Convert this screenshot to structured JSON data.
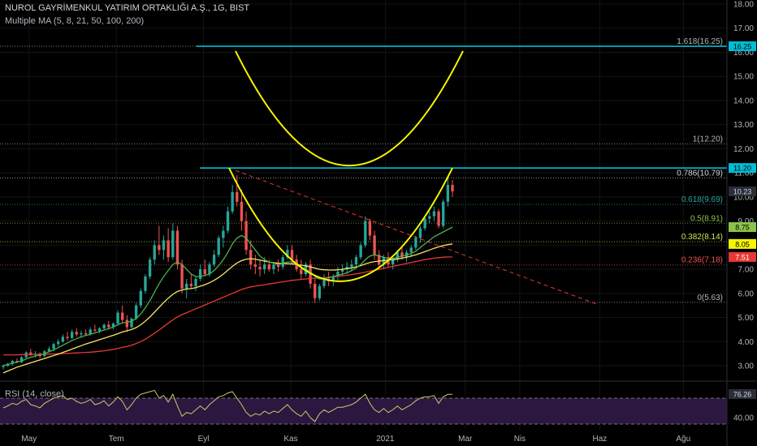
{
  "chart_data": {
    "type": "candlestick",
    "title": "NUROL GAYRİMENKUL YATIRIM ORTAKLIĞI A.Ş., 1G, BIST",
    "indicator_label": "Multiple MA (5, 8, 21, 50, 100, 200)",
    "rsi_label": "RSI (14, close)",
    "price_axis": {
      "ticks": [
        "18.00",
        "17.00",
        "16.00",
        "15.00",
        "14.00",
        "13.00",
        "12.00",
        "11.00",
        "10.00",
        "9.00",
        "8.00",
        "7.00",
        "6.00",
        "5.00",
        "4.00",
        "3.00"
      ],
      "ylim": [
        2.5,
        18.2
      ]
    },
    "rsi_axis": {
      "ticks": [
        "40.00"
      ]
    },
    "x_ticks": [
      {
        "label": "May",
        "t": 0.04
      },
      {
        "label": "Tem",
        "t": 0.16
      },
      {
        "label": "Eyl",
        "t": 0.28
      },
      {
        "label": "Kas",
        "t": 0.4
      },
      {
        "label": "2021",
        "t": 0.53
      },
      {
        "label": "Mar",
        "t": 0.64
      },
      {
        "label": "Nis",
        "t": 0.715
      },
      {
        "label": "Haz",
        "t": 0.825
      },
      {
        "label": "Ağu",
        "t": 0.94
      }
    ],
    "fib_levels": [
      {
        "label": "1.618(16.25)",
        "value": 16.25,
        "color": "#b2b5be"
      },
      {
        "label": "1(12.20)",
        "value": 12.2,
        "color": "#b2b5be"
      },
      {
        "label": "0.786(10.79)",
        "value": 10.79,
        "color": "#d1d4dc"
      },
      {
        "label": "0.618(9.69)",
        "value": 9.69,
        "color": "#26a69a"
      },
      {
        "label": "0.5(8.91)",
        "value": 8.91,
        "color": "#8bc34a"
      },
      {
        "label": "0.382(8.14)",
        "value": 8.14,
        "color": "#d4e157"
      },
      {
        "label": "0.236(7.18)",
        "value": 7.18,
        "color": "#ef5350"
      },
      {
        "label": "0(5.63)",
        "value": 5.63,
        "color": "#b2b5be"
      }
    ],
    "price_badges": [
      {
        "label": "16.25",
        "value": 16.25,
        "bg": "#00bcd4",
        "fg": "#000000"
      },
      {
        "label": "11.20",
        "value": 11.2,
        "bg": "#00bcd4",
        "fg": "#000000"
      },
      {
        "label": "10.23",
        "value": 10.23,
        "bg": "#2a2e39",
        "fg": "#d1d4dc"
      },
      {
        "label": "8.75",
        "value": 8.75,
        "bg": "#8bc34a",
        "fg": "#000000"
      },
      {
        "label": "8.05",
        "value": 8.05,
        "bg": "#f5f500",
        "fg": "#000000"
      },
      {
        "label": "7.51",
        "value": 7.51,
        "bg": "#e53935",
        "fg": "#ffffff"
      }
    ],
    "rsi_badges": [
      {
        "label": "76.26",
        "value": 76.26
      }
    ],
    "horizontal_lines": [
      {
        "value": 16.25,
        "color": "#00bcd4",
        "from_t": 0.27
      },
      {
        "value": 11.2,
        "color": "#00bcd4",
        "from_t": 0.275
      }
    ],
    "colors": {
      "up": "#26a69a",
      "down": "#ef5350",
      "ma_fast": "#4caf50",
      "ma_mid": "#f5e663",
      "ma_slow": "#e53935",
      "cup": "#f5f500",
      "trend": "#e53935",
      "rsi": "#d4c86a",
      "rsi_band": "#2b1740"
    },
    "candles": [
      [
        2.95,
        3.05,
        2.85,
        3.0
      ],
      [
        3.0,
        3.12,
        2.95,
        3.08
      ],
      [
        3.08,
        3.25,
        3.0,
        3.2
      ],
      [
        3.2,
        3.3,
        3.1,
        3.15
      ],
      [
        3.15,
        3.4,
        3.1,
        3.35
      ],
      [
        3.35,
        3.6,
        3.3,
        3.55
      ],
      [
        3.55,
        3.7,
        3.4,
        3.45
      ],
      [
        3.45,
        3.6,
        3.35,
        3.5
      ],
      [
        3.5,
        3.55,
        3.3,
        3.4
      ],
      [
        3.4,
        3.65,
        3.35,
        3.6
      ],
      [
        3.6,
        3.8,
        3.55,
        3.7
      ],
      [
        3.7,
        3.95,
        3.6,
        3.9
      ],
      [
        3.9,
        4.1,
        3.8,
        4.0
      ],
      [
        4.0,
        4.3,
        3.95,
        4.2
      ],
      [
        4.2,
        4.4,
        4.05,
        4.15
      ],
      [
        4.15,
        4.5,
        4.1,
        4.4
      ],
      [
        4.4,
        4.55,
        4.2,
        4.3
      ],
      [
        4.3,
        4.45,
        4.15,
        4.35
      ],
      [
        4.35,
        4.5,
        4.25,
        4.3
      ],
      [
        4.3,
        4.6,
        4.25,
        4.5
      ],
      [
        4.5,
        4.7,
        4.4,
        4.45
      ],
      [
        4.45,
        4.6,
        4.35,
        4.55
      ],
      [
        4.55,
        4.75,
        4.5,
        4.7
      ],
      [
        4.7,
        4.85,
        4.5,
        4.6
      ],
      [
        4.6,
        4.8,
        4.5,
        4.75
      ],
      [
        4.75,
        5.3,
        4.7,
        5.2
      ],
      [
        5.2,
        5.5,
        4.8,
        4.9
      ],
      [
        4.9,
        5.1,
        4.4,
        4.6
      ],
      [
        4.6,
        5.0,
        4.55,
        4.95
      ],
      [
        4.95,
        5.6,
        4.9,
        5.5
      ],
      [
        5.5,
        6.2,
        5.4,
        6.1
      ],
      [
        6.1,
        6.8,
        6.0,
        6.7
      ],
      [
        6.7,
        7.5,
        6.6,
        7.4
      ],
      [
        7.4,
        8.2,
        7.2,
        8.0
      ],
      [
        8.0,
        8.8,
        7.6,
        7.8
      ],
      [
        7.8,
        8.4,
        7.4,
        8.2
      ],
      [
        8.2,
        8.7,
        7.3,
        7.5
      ],
      [
        7.5,
        8.9,
        7.4,
        8.6
      ],
      [
        8.6,
        8.8,
        7.0,
        7.2
      ],
      [
        7.2,
        7.4,
        6.0,
        6.2
      ],
      [
        6.2,
        6.6,
        5.8,
        6.4
      ],
      [
        6.4,
        6.8,
        6.2,
        6.3
      ],
      [
        6.3,
        6.7,
        6.1,
        6.6
      ],
      [
        6.6,
        7.2,
        6.5,
        7.0
      ],
      [
        7.0,
        7.4,
        6.7,
        6.8
      ],
      [
        6.8,
        7.3,
        6.7,
        7.2
      ],
      [
        7.2,
        7.8,
        7.1,
        7.6
      ],
      [
        7.6,
        8.4,
        7.5,
        8.3
      ],
      [
        8.3,
        8.8,
        7.9,
        8.6
      ],
      [
        8.6,
        9.6,
        8.5,
        9.4
      ],
      [
        9.4,
        10.5,
        9.3,
        10.2
      ],
      [
        10.2,
        10.9,
        9.6,
        9.8
      ],
      [
        9.8,
        10.3,
        8.6,
        9.0
      ],
      [
        9.0,
        9.4,
        7.6,
        7.8
      ],
      [
        7.8,
        8.2,
        7.0,
        7.2
      ],
      [
        7.2,
        7.6,
        6.8,
        7.1
      ],
      [
        7.1,
        7.4,
        6.7,
        7.0
      ],
      [
        7.0,
        7.5,
        6.8,
        7.2
      ],
      [
        7.2,
        7.4,
        6.9,
        7.0
      ],
      [
        7.0,
        7.3,
        6.8,
        7.2
      ],
      [
        7.2,
        7.4,
        6.9,
        7.1
      ],
      [
        7.1,
        7.6,
        7.0,
        7.5
      ],
      [
        7.5,
        8.0,
        7.4,
        7.8
      ],
      [
        7.8,
        8.0,
        7.2,
        7.4
      ],
      [
        7.4,
        7.6,
        6.9,
        7.0
      ],
      [
        7.0,
        7.4,
        6.6,
        6.8
      ],
      [
        6.8,
        7.3,
        6.7,
        7.2
      ],
      [
        7.2,
        7.4,
        6.2,
        6.4
      ],
      [
        6.4,
        6.6,
        5.6,
        5.8
      ],
      [
        5.8,
        6.4,
        5.7,
        6.3
      ],
      [
        6.3,
        6.8,
        6.2,
        6.6
      ],
      [
        6.6,
        6.9,
        6.3,
        6.5
      ],
      [
        6.5,
        6.8,
        6.3,
        6.7
      ],
      [
        6.7,
        7.1,
        6.5,
        6.9
      ],
      [
        6.9,
        7.2,
        6.7,
        7.0
      ],
      [
        7.0,
        7.3,
        6.8,
        7.1
      ],
      [
        7.1,
        7.4,
        6.9,
        7.2
      ],
      [
        7.2,
        7.6,
        7.1,
        7.5
      ],
      [
        7.5,
        8.1,
        7.4,
        8.0
      ],
      [
        8.0,
        9.2,
        7.9,
        9.0
      ],
      [
        9.0,
        9.1,
        8.2,
        8.4
      ],
      [
        8.4,
        8.6,
        7.4,
        7.6
      ],
      [
        7.6,
        7.8,
        7.0,
        7.2
      ],
      [
        7.2,
        7.6,
        7.0,
        7.5
      ],
      [
        7.5,
        7.7,
        7.1,
        7.2
      ],
      [
        7.2,
        7.5,
        7.0,
        7.4
      ],
      [
        7.4,
        7.8,
        7.3,
        7.7
      ],
      [
        7.7,
        8.0,
        7.4,
        7.5
      ],
      [
        7.5,
        7.8,
        7.3,
        7.7
      ],
      [
        7.7,
        8.0,
        7.5,
        7.9
      ],
      [
        7.9,
        8.4,
        7.8,
        8.3
      ],
      [
        8.3,
        8.8,
        8.1,
        8.7
      ],
      [
        8.7,
        9.2,
        8.6,
        9.1
      ],
      [
        9.1,
        9.4,
        8.9,
        9.2
      ],
      [
        9.2,
        9.6,
        9.0,
        9.4
      ],
      [
        9.4,
        9.5,
        8.7,
        8.8
      ],
      [
        8.8,
        9.9,
        8.7,
        9.8
      ],
      [
        9.8,
        10.8,
        9.6,
        10.5
      ],
      [
        10.5,
        10.7,
        10.0,
        10.23
      ]
    ],
    "ma_fast": [
      3.0,
      3.05,
      3.1,
      3.15,
      3.2,
      3.28,
      3.35,
      3.4,
      3.45,
      3.5,
      3.58,
      3.66,
      3.75,
      3.85,
      3.95,
      4.05,
      4.12,
      4.2,
      4.25,
      4.3,
      4.36,
      4.42,
      4.48,
      4.54,
      4.6,
      4.7,
      4.78,
      4.8,
      4.85,
      4.95,
      5.15,
      5.4,
      5.7,
      6.05,
      6.4,
      6.7,
      6.95,
      7.2,
      7.3,
      7.2,
      7.0,
      6.8,
      6.7,
      6.7,
      6.75,
      6.8,
      6.95,
      7.15,
      7.4,
      7.7,
      8.05,
      8.3,
      8.4,
      8.3,
      8.05,
      7.8,
      7.55,
      7.4,
      7.3,
      7.25,
      7.2,
      7.25,
      7.3,
      7.3,
      7.2,
      7.1,
      7.0,
      6.9,
      6.7,
      6.6,
      6.6,
      6.65,
      6.7,
      6.75,
      6.8,
      6.85,
      6.95,
      7.05,
      7.2,
      7.4,
      7.55,
      7.6,
      7.55,
      7.5,
      7.45,
      7.45,
      7.5,
      7.55,
      7.6,
      7.65,
      7.75,
      7.9,
      8.05,
      8.2,
      8.35,
      8.45,
      8.55,
      8.65,
      8.75
    ],
    "ma_mid": [
      2.7,
      2.78,
      2.86,
      2.94,
      3.0,
      3.06,
      3.12,
      3.18,
      3.24,
      3.3,
      3.36,
      3.42,
      3.48,
      3.55,
      3.62,
      3.69,
      3.76,
      3.83,
      3.9,
      3.96,
      4.02,
      4.08,
      4.14,
      4.2,
      4.26,
      4.33,
      4.4,
      4.45,
      4.5,
      4.58,
      4.7,
      4.85,
      5.02,
      5.22,
      5.42,
      5.62,
      5.8,
      5.96,
      6.08,
      6.14,
      6.18,
      6.2,
      6.24,
      6.3,
      6.36,
      6.44,
      6.54,
      6.66,
      6.8,
      6.96,
      7.12,
      7.26,
      7.36,
      7.42,
      7.44,
      7.42,
      7.38,
      7.34,
      7.3,
      7.27,
      7.25,
      7.24,
      7.23,
      7.22,
      7.2,
      7.17,
      7.14,
      7.1,
      7.05,
      7.0,
      6.98,
      6.97,
      6.97,
      6.98,
      7.0,
      7.03,
      7.06,
      7.1,
      7.15,
      7.22,
      7.28,
      7.32,
      7.34,
      7.36,
      7.38,
      7.4,
      7.43,
      7.46,
      7.5,
      7.55,
      7.6,
      7.66,
      7.73,
      7.8,
      7.87,
      7.93,
      7.98,
      8.02,
      8.05
    ],
    "ma_slow": [
      3.45,
      3.45,
      3.45,
      3.45,
      3.46,
      3.46,
      3.46,
      3.47,
      3.47,
      3.48,
      3.48,
      3.49,
      3.5,
      3.5,
      3.51,
      3.52,
      3.53,
      3.54,
      3.55,
      3.56,
      3.58,
      3.6,
      3.62,
      3.65,
      3.68,
      3.72,
      3.76,
      3.8,
      3.85,
      3.92,
      4.0,
      4.1,
      4.22,
      4.35,
      4.48,
      4.62,
      4.76,
      4.9,
      5.02,
      5.12,
      5.2,
      5.28,
      5.36,
      5.44,
      5.52,
      5.6,
      5.68,
      5.76,
      5.84,
      5.92,
      6.0,
      6.08,
      6.16,
      6.22,
      6.27,
      6.3,
      6.33,
      6.36,
      6.39,
      6.42,
      6.45,
      6.48,
      6.51,
      6.54,
      6.56,
      6.58,
      6.6,
      6.62,
      6.63,
      6.64,
      6.65,
      6.67,
      6.69,
      6.71,
      6.73,
      6.75,
      6.78,
      6.81,
      6.84,
      6.88,
      6.92,
      6.96,
      7.0,
      7.04,
      7.08,
      7.12,
      7.16,
      7.2,
      7.24,
      7.28,
      7.32,
      7.36,
      7.4,
      7.43,
      7.46,
      7.48,
      7.5,
      7.51,
      7.51
    ],
    "rsi_values": [
      55,
      58,
      62,
      60,
      65,
      68,
      60,
      58,
      55,
      62,
      66,
      70,
      72,
      74,
      68,
      70,
      65,
      62,
      64,
      68,
      60,
      62,
      66,
      58,
      64,
      72,
      65,
      52,
      60,
      70,
      76,
      78,
      80,
      82,
      70,
      74,
      64,
      76,
      58,
      42,
      48,
      46,
      52,
      58,
      52,
      60,
      66,
      72,
      74,
      78,
      80,
      70,
      60,
      48,
      42,
      46,
      44,
      50,
      46,
      50,
      48,
      54,
      60,
      52,
      46,
      42,
      50,
      40,
      34,
      46,
      52,
      48,
      52,
      56,
      56,
      58,
      60,
      64,
      70,
      76,
      62,
      52,
      48,
      54,
      48,
      52,
      58,
      52,
      56,
      60,
      66,
      70,
      72,
      72,
      74,
      62,
      72,
      76,
      76
    ]
  }
}
